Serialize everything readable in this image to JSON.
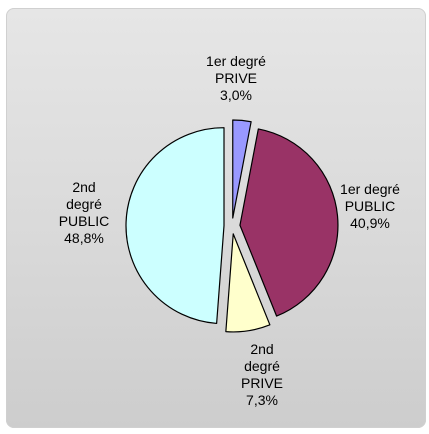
{
  "chart_data": {
    "type": "pie",
    "categories": [
      "1er degré PRIVE",
      "1er degré PUBLIC",
      "2nd degré PRIVE",
      "2nd degré PUBLIC"
    ],
    "values": [
      3.0,
      40.9,
      7.3,
      48.8
    ],
    "value_labels": [
      "3,0%",
      "40,9%",
      "7,3%",
      "48,8%"
    ],
    "slice_labels": [
      [
        "1er degré",
        "PRIVE"
      ],
      [
        "1er degré",
        "PUBLIC"
      ],
      [
        "2nd",
        "degré",
        "PRIVE"
      ],
      [
        "2nd",
        "degré",
        "PUBLIC"
      ]
    ],
    "colors": [
      "#9999ff",
      "#993366",
      "#ffffcc",
      "#ccffff"
    ],
    "exploded": true,
    "legend": "none",
    "start_angle_deg": 0,
    "direction": "clockwise"
  }
}
